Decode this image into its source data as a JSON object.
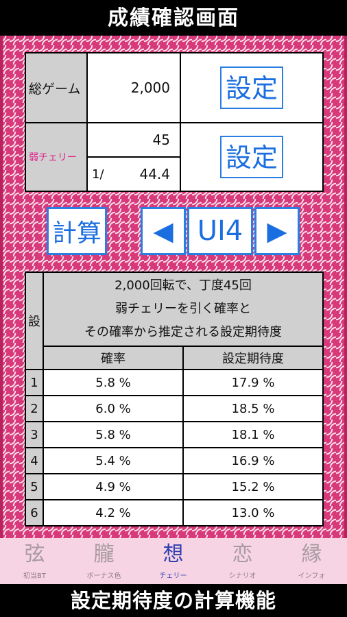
{
  "header": {
    "title": "成績確認画面"
  },
  "footer": {
    "caption": "設定期待度の計算機能"
  },
  "summary": {
    "total_games_label": "総ゲーム",
    "total_games_value": "2,000",
    "weak_cherry_label": "弱チェリー",
    "weak_cherry_count": "45",
    "ratio_prefix": "1/",
    "ratio_value": "44.4",
    "set_button_1": "設定",
    "set_button_2": "設定"
  },
  "controls": {
    "calc_button": "計算",
    "prev_glyph": "◀",
    "ui_label": "UI4",
    "next_glyph": "▶"
  },
  "result": {
    "side_label": "設",
    "description_lines": [
      "2,000回転で、丁度45回",
      "弱チェリーを引く確率と",
      "その確率から推定される設定期待度"
    ],
    "col_probability": "確率",
    "col_expectation": "設定期待度",
    "rows": [
      {
        "setting": "1",
        "probability": "5.8 %",
        "expectation": "17.9 %"
      },
      {
        "setting": "2",
        "probability": "6.0 %",
        "expectation": "18.5 %"
      },
      {
        "setting": "3",
        "probability": "5.8 %",
        "expectation": "18.1 %"
      },
      {
        "setting": "4",
        "probability": "5.4 %",
        "expectation": "16.9 %"
      },
      {
        "setting": "5",
        "probability": "4.9 %",
        "expectation": "15.2 %"
      },
      {
        "setting": "6",
        "probability": "4.2 %",
        "expectation": "13.0 %"
      }
    ]
  },
  "tabs": [
    {
      "glyph": "弦",
      "label": "初当BT",
      "active": false
    },
    {
      "glyph": "朧",
      "label": "ボーナス色",
      "active": false
    },
    {
      "glyph": "想",
      "label": "チェリー",
      "active": true
    },
    {
      "glyph": "恋",
      "label": "シナリオ",
      "active": false
    },
    {
      "glyph": "縁",
      "label": "インフォ",
      "active": false
    }
  ],
  "colors": {
    "background_pink": "#d7397a",
    "accent_blue": "#1a6ee0",
    "label_pink": "#e0218a",
    "tab_active": "#2f3fb0",
    "tabbar_bg": "#f7d4e4"
  }
}
